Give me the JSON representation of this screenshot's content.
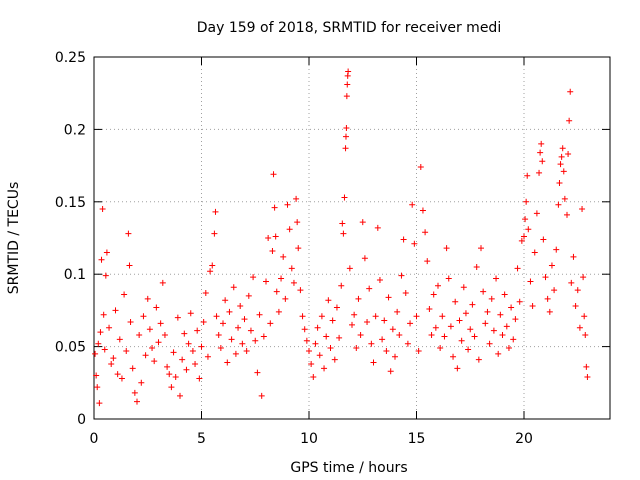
{
  "chart_data": {
    "type": "scatter",
    "title": "Day 159 of 2018, SRMTID for receiver medi",
    "xlabel": "GPS time / hours",
    "ylabel": "SRMTID / TECUs",
    "xlim": [
      0,
      24
    ],
    "ylim": [
      0,
      0.25
    ],
    "x_ticks": [
      0,
      5,
      10,
      15,
      20
    ],
    "x_tick_labels": [
      "0",
      "5",
      "10",
      "15",
      "20"
    ],
    "y_ticks": [
      0,
      0.05,
      0.1,
      0.15,
      0.2,
      0.25
    ],
    "y_tick_labels": [
      "0",
      "0.05",
      "0.1",
      "0.15",
      "0.2",
      "0.25"
    ],
    "grid": true,
    "marker": "+",
    "color": "#ff0000",
    "series": [
      {
        "name": "SRMTID",
        "points": [
          [
            0.05,
            0.045
          ],
          [
            0.1,
            0.03
          ],
          [
            0.15,
            0.022
          ],
          [
            0.2,
            0.052
          ],
          [
            0.25,
            0.011
          ],
          [
            0.3,
            0.06
          ],
          [
            0.35,
            0.11
          ],
          [
            0.4,
            0.145
          ],
          [
            0.45,
            0.072
          ],
          [
            0.5,
            0.048
          ],
          [
            0.55,
            0.099
          ],
          [
            0.6,
            0.115
          ],
          [
            0.7,
            0.063
          ],
          [
            0.8,
            0.038
          ],
          [
            0.9,
            0.042
          ],
          [
            1.0,
            0.075
          ],
          [
            1.1,
            0.031
          ],
          [
            1.2,
            0.055
          ],
          [
            1.3,
            0.028
          ],
          [
            1.4,
            0.086
          ],
          [
            1.5,
            0.047
          ],
          [
            1.6,
            0.128
          ],
          [
            1.65,
            0.106
          ],
          [
            1.7,
            0.067
          ],
          [
            1.8,
            0.035
          ],
          [
            1.9,
            0.018
          ],
          [
            2.0,
            0.012
          ],
          [
            2.1,
            0.058
          ],
          [
            2.2,
            0.025
          ],
          [
            2.3,
            0.071
          ],
          [
            2.4,
            0.044
          ],
          [
            2.5,
            0.083
          ],
          [
            2.6,
            0.062
          ],
          [
            2.7,
            0.049
          ],
          [
            2.8,
            0.04
          ],
          [
            2.9,
            0.077
          ],
          [
            3.0,
            0.053
          ],
          [
            3.1,
            0.066
          ],
          [
            3.2,
            0.094
          ],
          [
            3.3,
            0.058
          ],
          [
            3.4,
            0.036
          ],
          [
            3.5,
            0.031
          ],
          [
            3.6,
            0.022
          ],
          [
            3.7,
            0.046
          ],
          [
            3.8,
            0.029
          ],
          [
            3.9,
            0.07
          ],
          [
            4.0,
            0.016
          ],
          [
            4.1,
            0.041
          ],
          [
            4.2,
            0.059
          ],
          [
            4.3,
            0.034
          ],
          [
            4.4,
            0.052
          ],
          [
            4.5,
            0.073
          ],
          [
            4.6,
            0.047
          ],
          [
            4.7,
            0.038
          ],
          [
            4.8,
            0.061
          ],
          [
            4.9,
            0.028
          ],
          [
            5.0,
            0.05
          ],
          [
            5.1,
            0.067
          ],
          [
            5.2,
            0.087
          ],
          [
            5.3,
            0.043
          ],
          [
            5.4,
            0.102
          ],
          [
            5.5,
            0.106
          ],
          [
            5.6,
            0.128
          ],
          [
            5.65,
            0.143
          ],
          [
            5.7,
            0.071
          ],
          [
            5.8,
            0.058
          ],
          [
            5.9,
            0.049
          ],
          [
            6.0,
            0.066
          ],
          [
            6.1,
            0.082
          ],
          [
            6.2,
            0.039
          ],
          [
            6.3,
            0.074
          ],
          [
            6.4,
            0.055
          ],
          [
            6.5,
            0.091
          ],
          [
            6.6,
            0.045
          ],
          [
            6.7,
            0.063
          ],
          [
            6.8,
            0.078
          ],
          [
            6.9,
            0.052
          ],
          [
            7.0,
            0.069
          ],
          [
            7.1,
            0.047
          ],
          [
            7.2,
            0.085
          ],
          [
            7.3,
            0.061
          ],
          [
            7.4,
            0.098
          ],
          [
            7.5,
            0.054
          ],
          [
            7.6,
            0.032
          ],
          [
            7.7,
            0.072
          ],
          [
            7.8,
            0.016
          ],
          [
            7.9,
            0.057
          ],
          [
            8.0,
            0.095
          ],
          [
            8.1,
            0.125
          ],
          [
            8.2,
            0.066
          ],
          [
            8.3,
            0.116
          ],
          [
            8.35,
            0.169
          ],
          [
            8.4,
            0.146
          ],
          [
            8.45,
            0.126
          ],
          [
            8.5,
            0.088
          ],
          [
            8.6,
            0.074
          ],
          [
            8.7,
            0.097
          ],
          [
            8.8,
            0.112
          ],
          [
            8.9,
            0.083
          ],
          [
            9.0,
            0.148
          ],
          [
            9.1,
            0.131
          ],
          [
            9.2,
            0.104
          ],
          [
            9.3,
            0.094
          ],
          [
            9.4,
            0.152
          ],
          [
            9.45,
            0.136
          ],
          [
            9.5,
            0.118
          ],
          [
            9.6,
            0.089
          ],
          [
            9.7,
            0.071
          ],
          [
            9.8,
            0.062
          ],
          [
            9.9,
            0.054
          ],
          [
            10.0,
            0.047
          ],
          [
            10.1,
            0.038
          ],
          [
            10.2,
            0.029
          ],
          [
            10.3,
            0.052
          ],
          [
            10.4,
            0.063
          ],
          [
            10.5,
            0.044
          ],
          [
            10.6,
            0.071
          ],
          [
            10.7,
            0.035
          ],
          [
            10.8,
            0.057
          ],
          [
            10.9,
            0.082
          ],
          [
            11.0,
            0.049
          ],
          [
            11.1,
            0.068
          ],
          [
            11.2,
            0.041
          ],
          [
            11.3,
            0.077
          ],
          [
            11.4,
            0.056
          ],
          [
            11.5,
            0.092
          ],
          [
            11.55,
            0.135
          ],
          [
            11.6,
            0.128
          ],
          [
            11.65,
            0.153
          ],
          [
            11.7,
            0.187
          ],
          [
            11.72,
            0.195
          ],
          [
            11.74,
            0.201
          ],
          [
            11.76,
            0.223
          ],
          [
            11.78,
            0.231
          ],
          [
            11.8,
            0.237
          ],
          [
            11.82,
            0.24
          ],
          [
            11.9,
            0.104
          ],
          [
            12.0,
            0.065
          ],
          [
            12.1,
            0.072
          ],
          [
            12.2,
            0.049
          ],
          [
            12.3,
            0.083
          ],
          [
            12.4,
            0.058
          ],
          [
            12.5,
            0.136
          ],
          [
            12.6,
            0.111
          ],
          [
            12.7,
            0.067
          ],
          [
            12.8,
            0.09
          ],
          [
            12.9,
            0.052
          ],
          [
            13.0,
            0.039
          ],
          [
            13.1,
            0.071
          ],
          [
            13.2,
            0.132
          ],
          [
            13.3,
            0.096
          ],
          [
            13.4,
            0.055
          ],
          [
            13.5,
            0.068
          ],
          [
            13.6,
            0.047
          ],
          [
            13.7,
            0.084
          ],
          [
            13.8,
            0.033
          ],
          [
            13.9,
            0.062
          ],
          [
            14.0,
            0.043
          ],
          [
            14.1,
            0.074
          ],
          [
            14.2,
            0.058
          ],
          [
            14.3,
            0.099
          ],
          [
            14.4,
            0.124
          ],
          [
            14.5,
            0.087
          ],
          [
            14.6,
            0.052
          ],
          [
            14.7,
            0.066
          ],
          [
            14.8,
            0.148
          ],
          [
            14.9,
            0.121
          ],
          [
            15.0,
            0.071
          ],
          [
            15.1,
            0.047
          ],
          [
            15.2,
            0.174
          ],
          [
            15.3,
            0.144
          ],
          [
            15.4,
            0.129
          ],
          [
            15.5,
            0.109
          ],
          [
            15.6,
            0.076
          ],
          [
            15.7,
            0.058
          ],
          [
            15.8,
            0.086
          ],
          [
            15.9,
            0.063
          ],
          [
            16.0,
            0.092
          ],
          [
            16.1,
            0.049
          ],
          [
            16.2,
            0.071
          ],
          [
            16.3,
            0.057
          ],
          [
            16.4,
            0.118
          ],
          [
            16.5,
            0.097
          ],
          [
            16.6,
            0.064
          ],
          [
            16.7,
            0.043
          ],
          [
            16.8,
            0.081
          ],
          [
            16.9,
            0.035
          ],
          [
            17.0,
            0.068
          ],
          [
            17.1,
            0.054
          ],
          [
            17.2,
            0.091
          ],
          [
            17.3,
            0.073
          ],
          [
            17.4,
            0.048
          ],
          [
            17.5,
            0.062
          ],
          [
            17.6,
            0.079
          ],
          [
            17.7,
            0.057
          ],
          [
            17.8,
            0.105
          ],
          [
            17.9,
            0.041
          ],
          [
            18.0,
            0.118
          ],
          [
            18.1,
            0.088
          ],
          [
            18.2,
            0.066
          ],
          [
            18.3,
            0.074
          ],
          [
            18.4,
            0.052
          ],
          [
            18.5,
            0.083
          ],
          [
            18.6,
            0.061
          ],
          [
            18.7,
            0.097
          ],
          [
            18.8,
            0.045
          ],
          [
            18.9,
            0.072
          ],
          [
            19.0,
            0.058
          ],
          [
            19.1,
            0.086
          ],
          [
            19.2,
            0.064
          ],
          [
            19.3,
            0.049
          ],
          [
            19.4,
            0.077
          ],
          [
            19.5,
            0.055
          ],
          [
            19.6,
            0.069
          ],
          [
            19.7,
            0.104
          ],
          [
            19.8,
            0.081
          ],
          [
            19.9,
            0.123
          ],
          [
            20.0,
            0.126
          ],
          [
            20.05,
            0.138
          ],
          [
            20.1,
            0.15
          ],
          [
            20.15,
            0.168
          ],
          [
            20.2,
            0.131
          ],
          [
            20.3,
            0.095
          ],
          [
            20.4,
            0.078
          ],
          [
            20.5,
            0.115
          ],
          [
            20.6,
            0.142
          ],
          [
            20.7,
            0.17
          ],
          [
            20.75,
            0.184
          ],
          [
            20.8,
            0.19
          ],
          [
            20.85,
            0.178
          ],
          [
            20.9,
            0.124
          ],
          [
            21.0,
            0.098
          ],
          [
            21.1,
            0.083
          ],
          [
            21.2,
            0.074
          ],
          [
            21.3,
            0.106
          ],
          [
            21.4,
            0.089
          ],
          [
            21.5,
            0.117
          ],
          [
            21.6,
            0.148
          ],
          [
            21.65,
            0.163
          ],
          [
            21.7,
            0.176
          ],
          [
            21.75,
            0.181
          ],
          [
            21.8,
            0.187
          ],
          [
            21.85,
            0.171
          ],
          [
            21.9,
            0.152
          ],
          [
            22.0,
            0.141
          ],
          [
            22.05,
            0.183
          ],
          [
            22.1,
            0.206
          ],
          [
            22.15,
            0.226
          ],
          [
            22.2,
            0.094
          ],
          [
            22.3,
            0.112
          ],
          [
            22.4,
            0.078
          ],
          [
            22.5,
            0.089
          ],
          [
            22.6,
            0.063
          ],
          [
            22.7,
            0.145
          ],
          [
            22.75,
            0.098
          ],
          [
            22.8,
            0.071
          ],
          [
            22.85,
            0.058
          ],
          [
            22.9,
            0.036
          ],
          [
            22.95,
            0.029
          ]
        ]
      }
    ]
  }
}
